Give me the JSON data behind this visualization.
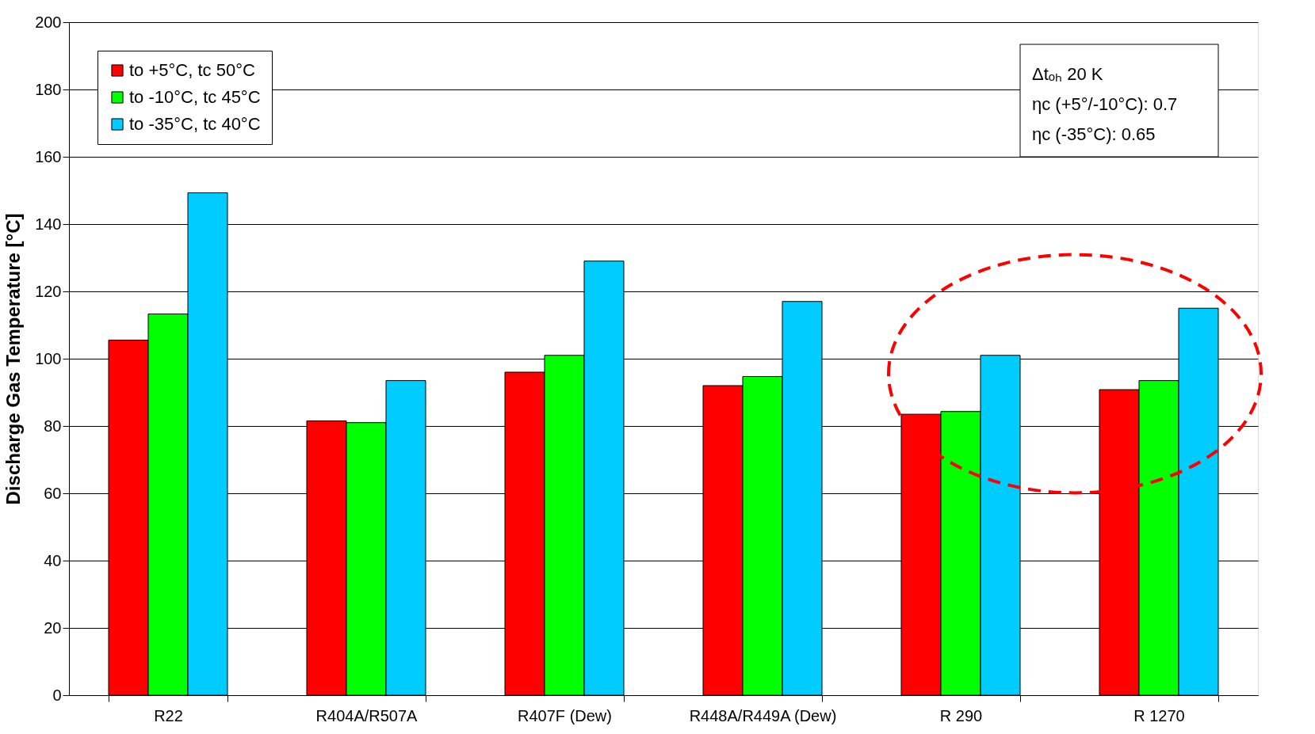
{
  "chart_data": {
    "type": "bar",
    "ylabel": "Discharge Gas Temperature [°C]",
    "categories": [
      "R22",
      "R404A/R507A",
      "R407F (Dew)",
      "R448A/R449A (Dew)",
      "R 290",
      "R 1270"
    ],
    "series": [
      {
        "name": "to +5°C, tc 50°C",
        "color": "#ff0000",
        "values": [
          105.5,
          81.5,
          96,
          92,
          83.5,
          90.8
        ]
      },
      {
        "name": "to -10°C, tc 45°C",
        "color": "#00ff00",
        "values": [
          113.3,
          81,
          101,
          94.7,
          84.3,
          93.5
        ]
      },
      {
        "name": "to -35°C, tc 40°C",
        "color": "#00ccff",
        "values": [
          149.3,
          93.5,
          129,
          117,
          101,
          115
        ]
      }
    ],
    "ylim": [
      0,
      200
    ],
    "yticks": [
      0,
      20,
      40,
      60,
      80,
      100,
      120,
      140,
      160,
      180,
      200
    ],
    "grid": "y",
    "legend": "top left",
    "annotations": [
      "Δtₒₕ 20 K",
      "ηc (+5°/-10°C): 0.7",
      "ηc (-35°C): 0.65"
    ]
  }
}
